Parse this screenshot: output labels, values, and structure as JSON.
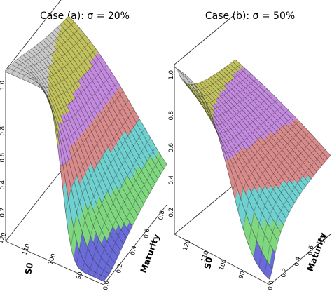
{
  "chart_data": [
    {
      "type": "surface",
      "title": "Case (a): σ = 20%",
      "x_label": "S0",
      "x_ticks": [
        "120",
        "110",
        "100",
        "90"
      ],
      "x_range": [
        85,
        120
      ],
      "y_label": "Maturity",
      "y_ticks": [
        "0.0",
        "0.2",
        "0.4",
        "0.6",
        "0.8"
      ],
      "y_range": [
        0,
        0.9
      ],
      "z_ticks": [
        "0.2",
        "0.4",
        "0.6",
        "0.8",
        "1.0"
      ],
      "z_range": [
        0,
        1
      ],
      "sigma": 0.2,
      "band_colors": [
        "#6a6ad8",
        "#7ed77e",
        "#6fd0d0",
        "#d98a8a",
        "#c48ae0",
        "#c2c25c",
        "#c9c9c9"
      ],
      "mesh_color": "#222222"
    },
    {
      "type": "surface",
      "title": "Case (b): σ = 50%",
      "x_label": "S0",
      "x_ticks": [
        "120",
        "110",
        "100",
        "90"
      ],
      "x_range": [
        85,
        120
      ],
      "y_label": "Maturity",
      "y_ticks": [
        "0.0",
        "0.2",
        "0.4",
        "0.6",
        "0.8"
      ],
      "y_range": [
        0,
        0.9
      ],
      "z_ticks": [
        "0.2",
        "0.4",
        "0.6",
        "0.8",
        "1.0"
      ],
      "z_range": [
        0,
        1
      ],
      "sigma": 0.5,
      "band_colors": [
        "#6a6ad8",
        "#7ed77e",
        "#6fd0d0",
        "#d98a8a",
        "#c48ae0",
        "#c2c25c",
        "#c9c9c9"
      ],
      "mesh_color": "#222222"
    }
  ]
}
